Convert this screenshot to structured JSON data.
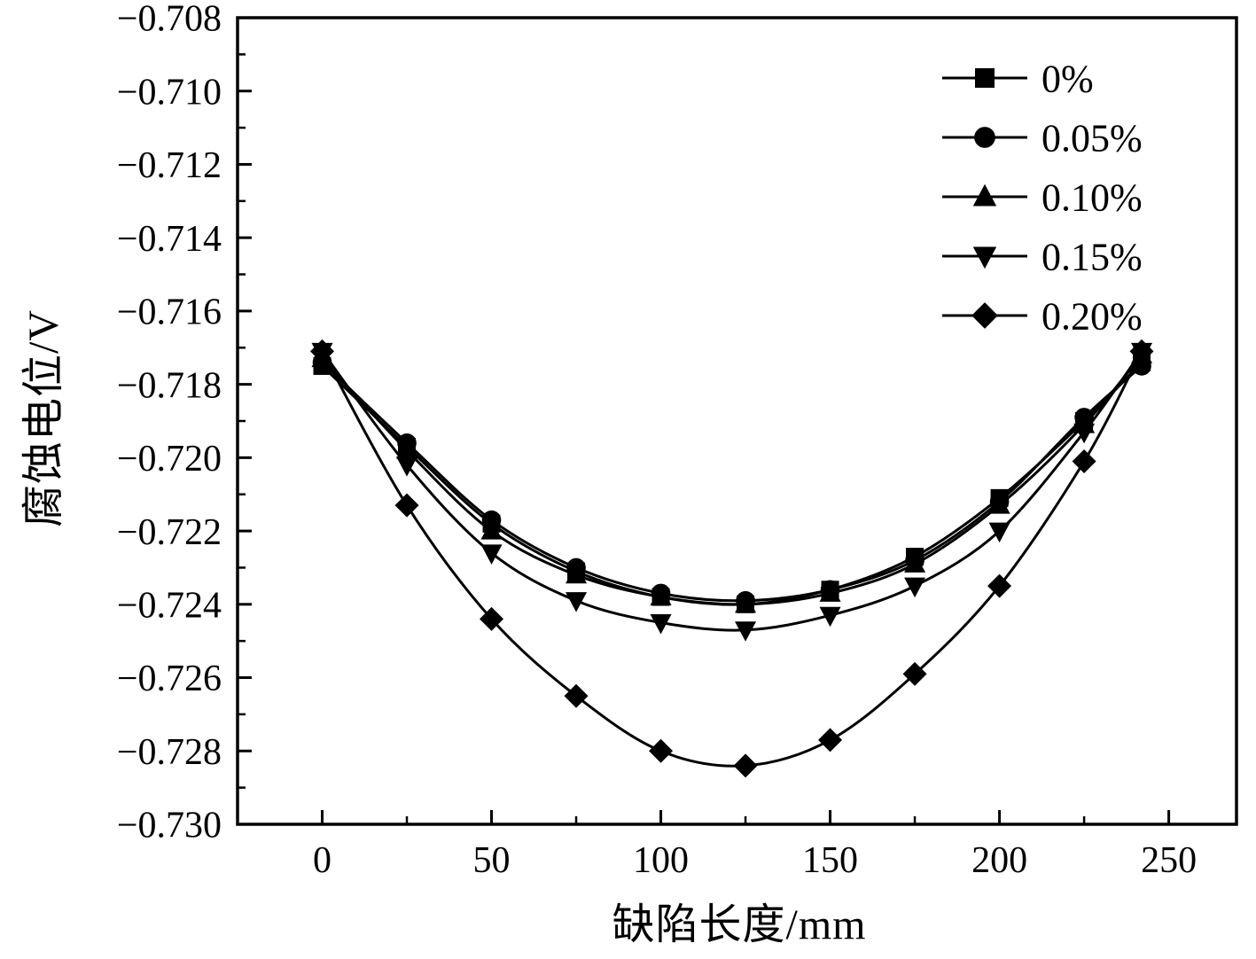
{
  "figure": {
    "background": "#ffffff",
    "axis_color": "#000000",
    "line_color": "#000000"
  },
  "chart_data": {
    "type": "line",
    "title": "",
    "xlabel": "缺陷长度/mm",
    "ylabel": "腐蚀电位/V",
    "xlim": [
      -25,
      270
    ],
    "ylim": [
      -0.73,
      -0.708
    ],
    "x_ticks": [
      0,
      50,
      100,
      150,
      200,
      250
    ],
    "x_minor_step": 25,
    "y_ticks": [
      -0.708,
      -0.71,
      -0.712,
      -0.714,
      -0.716,
      -0.718,
      -0.72,
      -0.722,
      -0.724,
      -0.726,
      -0.728,
      -0.73
    ],
    "y_minor_step": 0.001,
    "y_tick_decimals": 3,
    "grid": false,
    "legend_position": "top-right",
    "x": [
      0,
      25,
      50,
      75,
      100,
      125,
      150,
      175,
      200,
      225,
      242
    ],
    "series": [
      {
        "name": "0%",
        "marker": "square",
        "values": [
          -0.7175,
          -0.7197,
          -0.7218,
          -0.7231,
          -0.7238,
          -0.724,
          -0.7236,
          -0.7227,
          -0.7211,
          -0.719,
          -0.7174
        ]
      },
      {
        "name": "0.05%",
        "marker": "circle",
        "values": [
          -0.7174,
          -0.7196,
          -0.7217,
          -0.723,
          -0.7237,
          -0.7239,
          -0.7236,
          -0.7228,
          -0.7212,
          -0.7189,
          -0.7175
        ]
      },
      {
        "name": "0.10%",
        "marker": "triangle-up",
        "values": [
          -0.7173,
          -0.7198,
          -0.722,
          -0.7232,
          -0.7238,
          -0.724,
          -0.7237,
          -0.7229,
          -0.7213,
          -0.7191,
          -0.7172
        ]
      },
      {
        "name": "0.15%",
        "marker": "triangle-down",
        "values": [
          -0.7171,
          -0.7202,
          -0.7226,
          -0.7239,
          -0.7245,
          -0.7247,
          -0.7243,
          -0.7235,
          -0.722,
          -0.7193,
          -0.7171
        ]
      },
      {
        "name": "0.20%",
        "marker": "diamond",
        "values": [
          -0.7171,
          -0.7213,
          -0.7244,
          -0.7265,
          -0.728,
          -0.7284,
          -0.7277,
          -0.7259,
          -0.7235,
          -0.7201,
          -0.7171
        ]
      }
    ]
  }
}
